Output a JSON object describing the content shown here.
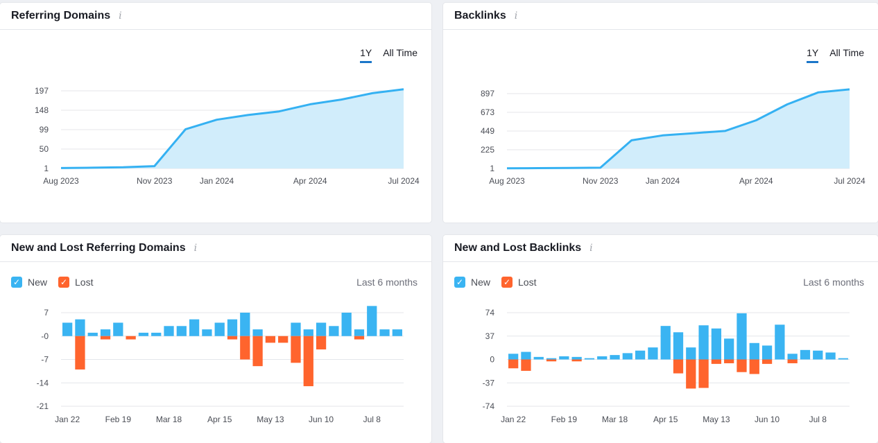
{
  "colors": {
    "line": "#35b1f2",
    "area": "#d1edfb",
    "new": "#3ab4f2",
    "lost": "#ff642d",
    "grid": "#e4e6ea",
    "tab_active": "#1b76c9"
  },
  "referring_domains": {
    "title": "Referring Domains",
    "info_icon": "info-icon",
    "tabs": [
      {
        "label": "1Y",
        "active": true
      },
      {
        "label": "All Time",
        "active": false
      }
    ],
    "chart_data": {
      "type": "area",
      "x_ticks": [
        "Aug 2023",
        "Nov 2023",
        "Jan 2024",
        "Apr 2024",
        "Jul 2024"
      ],
      "y_ticks": [
        "197",
        "148",
        "99",
        "50",
        "1"
      ],
      "ylim": [
        1,
        197
      ],
      "x": [
        "Aug 2023",
        "Sep 2023",
        "Oct 2023",
        "Nov 2023",
        "Dec 2023",
        "Jan 2024",
        "Feb 2024",
        "Mar 2024",
        "Apr 2024",
        "May 2024",
        "Jun 2024",
        "Jul 2024"
      ],
      "values": [
        2,
        3,
        4,
        7,
        100,
        124,
        136,
        145,
        163,
        175,
        191,
        201
      ]
    }
  },
  "backlinks": {
    "title": "Backlinks",
    "info_icon": "info-icon",
    "tabs": [
      {
        "label": "1Y",
        "active": true
      },
      {
        "label": "All Time",
        "active": false
      }
    ],
    "chart_data": {
      "type": "area",
      "x_ticks": [
        "Aug 2023",
        "Nov 2023",
        "Jan 2024",
        "Apr 2024",
        "Jul 2024"
      ],
      "y_ticks": [
        "897",
        "673",
        "449",
        "225",
        "1"
      ],
      "ylim": [
        1,
        897
      ],
      "x": [
        "Aug 2023",
        "Sep 2023",
        "Oct 2023",
        "Nov 2023",
        "Dec 2023",
        "Jan 2024",
        "Feb 2024",
        "Mar 2024",
        "Apr 2024",
        "May 2024",
        "Jun 2024",
        "Jul 2024"
      ],
      "values": [
        3,
        5,
        7,
        10,
        338,
        397,
        423,
        450,
        578,
        768,
        912,
        948
      ]
    }
  },
  "new_lost_referring_domains": {
    "title": "New and Lost Referring Domains",
    "info_icon": "info-icon",
    "legend": [
      {
        "label": "New",
        "color": "#3ab4f2"
      },
      {
        "label": "Lost",
        "color": "#ff642d"
      }
    ],
    "period": "Last 6 months",
    "chart_data": {
      "type": "bar",
      "x_ticks": [
        "Jan 22",
        "Feb 19",
        "Mar 18",
        "Apr 15",
        "May 13",
        "Jun 10",
        "Jul 8"
      ],
      "y_ticks": [
        "7",
        "-0",
        "-7",
        "-14",
        "-21"
      ],
      "ylim": [
        -21,
        7
      ],
      "series": [
        {
          "name": "New",
          "values": [
            4,
            5,
            1,
            2,
            4,
            0,
            1,
            1,
            3,
            3,
            5,
            2,
            4,
            5,
            7,
            2,
            0,
            0,
            4,
            2,
            4,
            3,
            7,
            2,
            9,
            2,
            2
          ]
        },
        {
          "name": "Lost",
          "values": [
            0,
            -10,
            0,
            -1,
            0,
            -1,
            0,
            0,
            0,
            0,
            0,
            0,
            0,
            -1,
            -7,
            -9,
            -2,
            -2,
            -8,
            -15,
            -4,
            0,
            0,
            -1,
            0,
            0,
            0
          ]
        }
      ]
    }
  },
  "new_lost_backlinks": {
    "title": "New and Lost Backlinks",
    "info_icon": "info-icon",
    "legend": [
      {
        "label": "New",
        "color": "#3ab4f2"
      },
      {
        "label": "Lost",
        "color": "#ff642d"
      }
    ],
    "period": "Last 6 months",
    "chart_data": {
      "type": "bar",
      "x_ticks": [
        "Jan 22",
        "Feb 19",
        "Mar 18",
        "Apr 15",
        "May 13",
        "Jun 10",
        "Jul 8"
      ],
      "y_ticks": [
        "74",
        "37",
        "0",
        "-37",
        "-74"
      ],
      "ylim": [
        -74,
        74
      ],
      "series": [
        {
          "name": "New",
          "values": [
            9,
            12,
            4,
            2,
            5,
            4,
            2,
            5,
            7,
            10,
            14,
            19,
            53,
            43,
            19,
            54,
            49,
            33,
            73,
            26,
            22,
            55,
            9,
            15,
            14,
            11,
            2
          ]
        },
        {
          "name": "Lost",
          "values": [
            -14,
            -18,
            0,
            -3,
            0,
            -3,
            0,
            0,
            0,
            0,
            0,
            0,
            0,
            -22,
            -46,
            -45,
            -7,
            -6,
            -20,
            -23,
            -7,
            0,
            -6,
            0,
            0,
            0,
            0
          ]
        }
      ]
    }
  }
}
